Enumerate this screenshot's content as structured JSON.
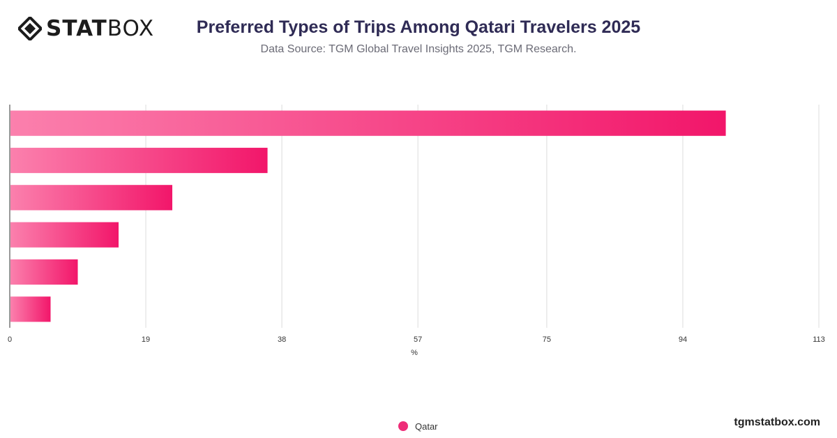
{
  "header": {
    "logo_bold": "STAT",
    "logo_light": "BOX",
    "title": "Preferred Types of Trips Among Qatari Travelers 2025",
    "subtitle": "Data Source: TGM Global Travel Insights 2025, TGM Research."
  },
  "colors": {
    "bar_start": "#fb80ad",
    "bar_end": "#f2166a",
    "grid": "#dcdcdc",
    "axis": "#333333"
  },
  "chart_data": {
    "type": "bar",
    "orientation": "horizontal",
    "categories": [
      "",
      "",
      "",
      "",
      "",
      ""
    ],
    "series": [
      {
        "name": "Qatar",
        "values": [
          100,
          36,
          22.7,
          15.2,
          9.5,
          5.7
        ]
      }
    ],
    "xlabel": "%",
    "xlim": [
      0,
      113
    ],
    "xticks": [
      0,
      19,
      38,
      57,
      75,
      94,
      113
    ],
    "grid": true,
    "legend_position": "bottom-center"
  },
  "legend": {
    "items": [
      "Qatar"
    ]
  },
  "footer": {
    "brand": "tgmstatbox.com"
  }
}
